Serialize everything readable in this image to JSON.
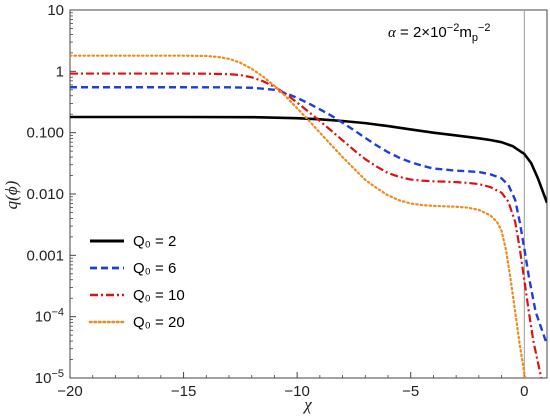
{
  "chart_data": {
    "type": "line",
    "xlabel": "χ",
    "ylabel": "q(ϕ)",
    "xlim": [
      -20,
      1
    ],
    "ylim": [
      1e-05,
      10
    ],
    "yscale": "log",
    "grid": false,
    "legend_position": "bottom-left",
    "x_ticks": [
      -20,
      -15,
      -10,
      -5,
      0
    ],
    "x_tick_labels": [
      "−20",
      "−15",
      "−10",
      "−5",
      "0"
    ],
    "y_ticks": [
      1e-05,
      0.0001,
      0.001,
      0.01,
      0.1,
      1,
      10
    ],
    "y_tick_labels": [
      {
        "base": "10",
        "exp": "−5"
      },
      {
        "base": "10",
        "exp": "−4"
      },
      {
        "text": "0.001"
      },
      {
        "text": "0.010"
      },
      {
        "text": "0.100"
      },
      {
        "text": "1"
      },
      {
        "text": "10"
      }
    ],
    "annotation": {
      "symbol": "α",
      "text": " = 2×10",
      "exp1": "−2",
      "mid": "m",
      "sub": "p",
      "exp2": "−2"
    },
    "vertical_line_x": 0,
    "series": [
      {
        "name": "Q₀ = 2",
        "color": "#000000",
        "dash": "solid",
        "points": [
          [
            -20,
            0.18
          ],
          [
            -15,
            0.18
          ],
          [
            -12,
            0.179
          ],
          [
            -10,
            0.172
          ],
          [
            -9,
            0.165
          ],
          [
            -8,
            0.155
          ],
          [
            -7,
            0.143
          ],
          [
            -6,
            0.128
          ],
          [
            -5,
            0.113
          ],
          [
            -4,
            0.1
          ],
          [
            -3,
            0.09
          ],
          [
            -2,
            0.081
          ],
          [
            -1.5,
            0.076
          ],
          [
            -1,
            0.07
          ],
          [
            -0.5,
            0.06
          ],
          [
            0,
            0.045
          ],
          [
            0.3,
            0.032
          ],
          [
            0.6,
            0.018
          ],
          [
            1,
            0.0072
          ]
        ]
      },
      {
        "name": "Q₀ = 6",
        "color": "#1f3fd9",
        "dash": "dashed",
        "points": [
          [
            -20,
            0.55
          ],
          [
            -15,
            0.55
          ],
          [
            -13,
            0.548
          ],
          [
            -12,
            0.54
          ],
          [
            -11,
            0.5
          ],
          [
            -10.5,
            0.44
          ],
          [
            -10,
            0.37
          ],
          [
            -9.5,
            0.3
          ],
          [
            -9,
            0.24
          ],
          [
            -8.5,
            0.19
          ],
          [
            -8,
            0.145
          ],
          [
            -7.5,
            0.11
          ],
          [
            -7,
            0.082
          ],
          [
            -6.5,
            0.062
          ],
          [
            -6,
            0.048
          ],
          [
            -5.5,
            0.039
          ],
          [
            -5,
            0.033
          ],
          [
            -4.5,
            0.029
          ],
          [
            -4,
            0.026
          ],
          [
            -3.5,
            0.025
          ],
          [
            -3,
            0.024
          ],
          [
            -2.5,
            0.0235
          ],
          [
            -2,
            0.0228
          ],
          [
            -1.5,
            0.021
          ],
          [
            -1,
            0.018
          ],
          [
            -0.7,
            0.014
          ],
          [
            -0.4,
            0.008
          ],
          [
            -0.2,
            0.0035
          ],
          [
            0,
            0.0013
          ],
          [
            0.2,
            0.00045
          ],
          [
            0.5,
            0.00012
          ],
          [
            1,
            3.5e-05
          ]
        ]
      },
      {
        "name": "Q₀ = 10",
        "color": "#e01010",
        "dash": "dashdot",
        "points": [
          [
            -20,
            0.92
          ],
          [
            -15,
            0.92
          ],
          [
            -14,
            0.915
          ],
          [
            -13,
            0.9
          ],
          [
            -12.5,
            0.87
          ],
          [
            -12,
            0.8
          ],
          [
            -11.5,
            0.69
          ],
          [
            -11,
            0.56
          ],
          [
            -10.5,
            0.43
          ],
          [
            -10,
            0.31
          ],
          [
            -9.5,
            0.22
          ],
          [
            -9,
            0.155
          ],
          [
            -8.5,
            0.108
          ],
          [
            -8,
            0.075
          ],
          [
            -7.5,
            0.052
          ],
          [
            -7,
            0.037
          ],
          [
            -6.5,
            0.028
          ],
          [
            -6,
            0.022
          ],
          [
            -5.5,
            0.019
          ],
          [
            -5,
            0.0172
          ],
          [
            -4.5,
            0.0165
          ],
          [
            -4,
            0.0161
          ],
          [
            -3.5,
            0.0159
          ],
          [
            -3,
            0.0156
          ],
          [
            -2.5,
            0.0152
          ],
          [
            -2,
            0.0145
          ],
          [
            -1.5,
            0.013
          ],
          [
            -1,
            0.0105
          ],
          [
            -0.7,
            0.0075
          ],
          [
            -0.4,
            0.0035
          ],
          [
            -0.2,
            0.0013
          ],
          [
            0,
            0.0004
          ],
          [
            0.2,
            0.00012
          ],
          [
            0.4,
            4e-05
          ],
          [
            0.7,
            1.2e-05
          ],
          [
            0.8,
            8e-06
          ]
        ]
      },
      {
        "name": "Q₀ = 20",
        "color": "#f08a1e",
        "dash": "dotted",
        "points": [
          [
            -20,
            1.8
          ],
          [
            -15,
            1.8
          ],
          [
            -14,
            1.78
          ],
          [
            -13.5,
            1.72
          ],
          [
            -13,
            1.6
          ],
          [
            -12.5,
            1.38
          ],
          [
            -12,
            1.1
          ],
          [
            -11.5,
            0.82
          ],
          [
            -11,
            0.58
          ],
          [
            -10.5,
            0.39
          ],
          [
            -10,
            0.25
          ],
          [
            -9.5,
            0.16
          ],
          [
            -9,
            0.1
          ],
          [
            -8.5,
            0.063
          ],
          [
            -8,
            0.04
          ],
          [
            -7.5,
            0.026
          ],
          [
            -7,
            0.017
          ],
          [
            -6.5,
            0.0125
          ],
          [
            -6,
            0.0095
          ],
          [
            -5.5,
            0.0079
          ],
          [
            -5,
            0.007
          ],
          [
            -4.5,
            0.0066
          ],
          [
            -4,
            0.0064
          ],
          [
            -3.5,
            0.0063
          ],
          [
            -3,
            0.0062
          ],
          [
            -2.5,
            0.006
          ],
          [
            -2,
            0.0055
          ],
          [
            -1.5,
            0.0045
          ],
          [
            -1.2,
            0.0035
          ],
          [
            -1,
            0.0025
          ],
          [
            -0.8,
            0.0012
          ],
          [
            -0.6,
            0.0004
          ],
          [
            -0.4,
            0.00012
          ],
          [
            -0.2,
            3.5e-05
          ],
          [
            0,
            1.2e-05
          ],
          [
            0.1,
            8e-06
          ]
        ]
      }
    ]
  }
}
